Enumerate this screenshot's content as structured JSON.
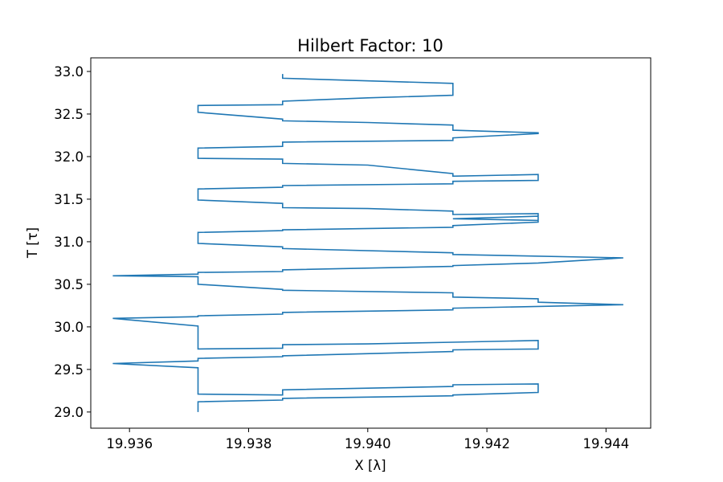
{
  "chart_data": {
    "type": "line",
    "title": "Hilbert Factor: 10",
    "xlabel": "X [λ]",
    "ylabel": "T [τ]",
    "xlim": [
      19.93535,
      19.94475
    ],
    "ylim": [
      28.81,
      33.16
    ],
    "xticks": [
      19.936,
      19.938,
      19.94,
      19.942,
      19.944
    ],
    "xtick_labels": [
      "19.936",
      "19.938",
      "19.940",
      "19.942",
      "19.944"
    ],
    "yticks": [
      29.0,
      29.5,
      30.0,
      30.5,
      31.0,
      31.5,
      32.0,
      32.5,
      33.0
    ],
    "ytick_labels": [
      "29.0",
      "29.5",
      "30.0",
      "30.5",
      "31.0",
      "31.5",
      "32.0",
      "32.5",
      "33.0"
    ],
    "grid": false,
    "line_color": "#1f77b4",
    "series": [
      {
        "x": [
          19.93715,
          19.93715,
          19.93857,
          19.93857,
          19.94143,
          19.94143,
          19.94286,
          19.94286,
          19.94143,
          19.94143,
          19.93857,
          19.93857,
          19.93715,
          19.93715,
          19.93572,
          19.93715,
          19.93715,
          19.93857,
          19.93857,
          19.94143,
          19.94143,
          19.94286,
          19.94286,
          19.94143,
          19.94,
          19.93857,
          19.93857,
          19.93715,
          19.93715,
          19.93572,
          19.93715,
          19.93715,
          19.93857,
          19.93857,
          19.94143,
          19.94143,
          19.94429,
          19.94286,
          19.94286,
          19.94143,
          19.94143,
          19.93857,
          19.93857,
          19.93715,
          19.93715,
          19.93572,
          19.93715,
          19.93715,
          19.93857,
          19.93857,
          19.94143,
          19.94143,
          19.94286,
          19.94429,
          19.94143,
          19.94143,
          19.93857,
          19.93857,
          19.93715,
          19.93715,
          19.93857,
          19.93857,
          19.94143,
          19.94143,
          19.94286,
          19.94286,
          19.94143,
          19.94286,
          19.94286,
          19.94143,
          19.94143,
          19.94,
          19.93857,
          19.93857,
          19.93715,
          19.93715,
          19.93857,
          19.93857,
          19.94143,
          19.94143,
          19.94286,
          19.94286,
          19.94143,
          19.94143,
          19.94,
          19.93857,
          19.93857,
          19.93715,
          19.93715,
          19.93857,
          19.93857,
          19.94143,
          19.94143,
          19.94286,
          19.94286,
          19.94143,
          19.94143,
          19.94,
          19.93857,
          19.93857,
          19.93715,
          19.93715,
          19.93857,
          19.93857,
          19.94,
          19.94143,
          19.94143,
          19.93857,
          19.93857
        ],
        "y": [
          29.0,
          29.12,
          29.14,
          29.16,
          29.19,
          29.2,
          29.23,
          29.33,
          29.32,
          29.3,
          29.26,
          29.2,
          29.21,
          29.52,
          29.57,
          29.6,
          29.63,
          29.65,
          29.66,
          29.71,
          29.73,
          29.74,
          29.84,
          29.82,
          29.8,
          29.79,
          29.75,
          29.74,
          30.01,
          30.1,
          30.12,
          30.13,
          30.15,
          30.17,
          30.2,
          30.22,
          30.26,
          30.29,
          30.33,
          30.35,
          30.4,
          30.43,
          30.44,
          30.5,
          30.59,
          30.6,
          30.62,
          30.64,
          30.65,
          30.67,
          30.71,
          30.72,
          30.75,
          30.81,
          30.85,
          30.87,
          30.92,
          30.94,
          30.98,
          31.11,
          31.13,
          31.14,
          31.17,
          31.19,
          31.23,
          31.3,
          31.27,
          31.25,
          31.33,
          31.32,
          31.36,
          31.39,
          31.4,
          31.45,
          31.49,
          31.62,
          31.64,
          31.66,
          31.68,
          31.71,
          31.72,
          31.79,
          31.77,
          31.8,
          31.9,
          31.92,
          31.97,
          31.98,
          32.1,
          32.12,
          32.17,
          32.19,
          32.22,
          32.27,
          32.28,
          32.31,
          32.37,
          32.4,
          32.42,
          32.44,
          32.52,
          32.6,
          32.61,
          32.65,
          32.69,
          32.72,
          32.86,
          32.92,
          32.97
        ]
      }
    ]
  }
}
